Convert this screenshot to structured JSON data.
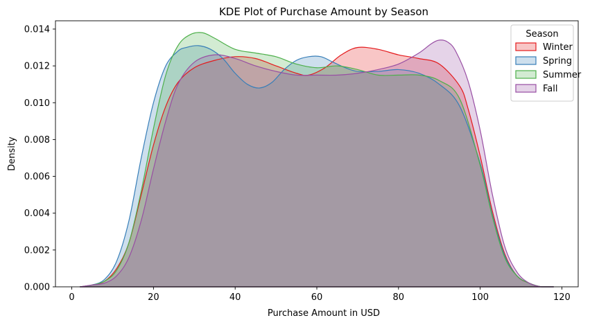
{
  "chart_data": {
    "type": "area",
    "title": "KDE Plot of Purchase Amount by Season",
    "xlabel": "Purchase Amount in USD",
    "ylabel": "Density",
    "xlim": [
      -4,
      124
    ],
    "ylim": [
      0,
      0.01445
    ],
    "x_ticks": [
      0,
      20,
      40,
      60,
      80,
      100,
      120
    ],
    "y_ticks": [
      0.0,
      0.002,
      0.004,
      0.006,
      0.008,
      0.01,
      0.012,
      0.014
    ],
    "y_tick_labels": [
      "0.000",
      "0.002",
      "0.004",
      "0.006",
      "0.008",
      "0.010",
      "0.012",
      "0.014"
    ],
    "grid": false,
    "legend": {
      "title": "Season",
      "position": "top-right"
    },
    "series": [
      {
        "name": "Winter",
        "color": "#e41a1c",
        "x": [
          2,
          5,
          8,
          11,
          14,
          17,
          20,
          23,
          26,
          30,
          35,
          40,
          45,
          50,
          55,
          58,
          62,
          66,
          70,
          75,
          80,
          85,
          90,
          95,
          97,
          100,
          103,
          106,
          109,
          112,
          115,
          118
        ],
        "y": [
          0.0,
          0.0001,
          0.0003,
          0.001,
          0.0024,
          0.005,
          0.0077,
          0.0098,
          0.0111,
          0.0119,
          0.0123,
          0.0125,
          0.0124,
          0.012,
          0.0116,
          0.0115,
          0.0119,
          0.0126,
          0.013,
          0.0129,
          0.0126,
          0.0124,
          0.0121,
          0.0109,
          0.0097,
          0.0071,
          0.0041,
          0.0018,
          0.0006,
          0.0002,
          0.0,
          0.0
        ]
      },
      {
        "name": "Spring",
        "color": "#377eb8",
        "x": [
          2,
          5,
          8,
          11,
          14,
          17,
          20,
          23,
          26,
          28,
          31,
          34,
          37,
          40,
          43,
          46,
          49,
          52,
          55,
          58,
          61,
          64,
          67,
          70,
          75,
          80,
          85,
          90,
          95,
          100,
          103,
          106,
          109,
          112,
          115,
          118
        ],
        "y": [
          0.0,
          0.0001,
          0.0004,
          0.0014,
          0.0036,
          0.007,
          0.01,
          0.012,
          0.0128,
          0.013,
          0.0131,
          0.0129,
          0.0124,
          0.0116,
          0.011,
          0.0108,
          0.0111,
          0.0118,
          0.0123,
          0.0125,
          0.0125,
          0.0122,
          0.0119,
          0.0117,
          0.0117,
          0.0118,
          0.0116,
          0.011,
          0.0098,
          0.0067,
          0.0039,
          0.0017,
          0.0006,
          0.0002,
          0.0,
          0.0
        ]
      },
      {
        "name": "Summer",
        "color": "#4daf4a",
        "x": [
          2,
          5,
          8,
          11,
          14,
          17,
          20,
          23,
          26,
          29,
          32,
          35,
          40,
          45,
          50,
          55,
          60,
          65,
          70,
          75,
          80,
          85,
          90,
          95,
          100,
          103,
          106,
          109,
          112,
          115,
          118
        ],
        "y": [
          0.0,
          0.0001,
          0.0003,
          0.0009,
          0.0024,
          0.0052,
          0.0086,
          0.0115,
          0.0131,
          0.0137,
          0.0138,
          0.0135,
          0.0129,
          0.0127,
          0.0125,
          0.0121,
          0.0119,
          0.012,
          0.0118,
          0.0115,
          0.0115,
          0.0115,
          0.0112,
          0.0102,
          0.0066,
          0.0038,
          0.0016,
          0.0006,
          0.0002,
          0.0,
          0.0
        ]
      },
      {
        "name": "Fall",
        "color": "#984ea3",
        "x": [
          2,
          5,
          8,
          11,
          14,
          17,
          20,
          23,
          26,
          30,
          35,
          40,
          45,
          50,
          55,
          60,
          65,
          70,
          75,
          80,
          85,
          88,
          90,
          92,
          94,
          97,
          100,
          103,
          106,
          109,
          112,
          115,
          118
        ],
        "y": [
          0.0,
          0.0001,
          0.0002,
          0.0006,
          0.0016,
          0.0036,
          0.0064,
          0.009,
          0.011,
          0.0122,
          0.0126,
          0.0124,
          0.012,
          0.0117,
          0.0115,
          0.0115,
          0.0115,
          0.0116,
          0.0118,
          0.0121,
          0.0127,
          0.0132,
          0.0134,
          0.0133,
          0.0128,
          0.0112,
          0.0085,
          0.005,
          0.0022,
          0.0008,
          0.0002,
          0.0,
          0.0
        ]
      }
    ]
  }
}
